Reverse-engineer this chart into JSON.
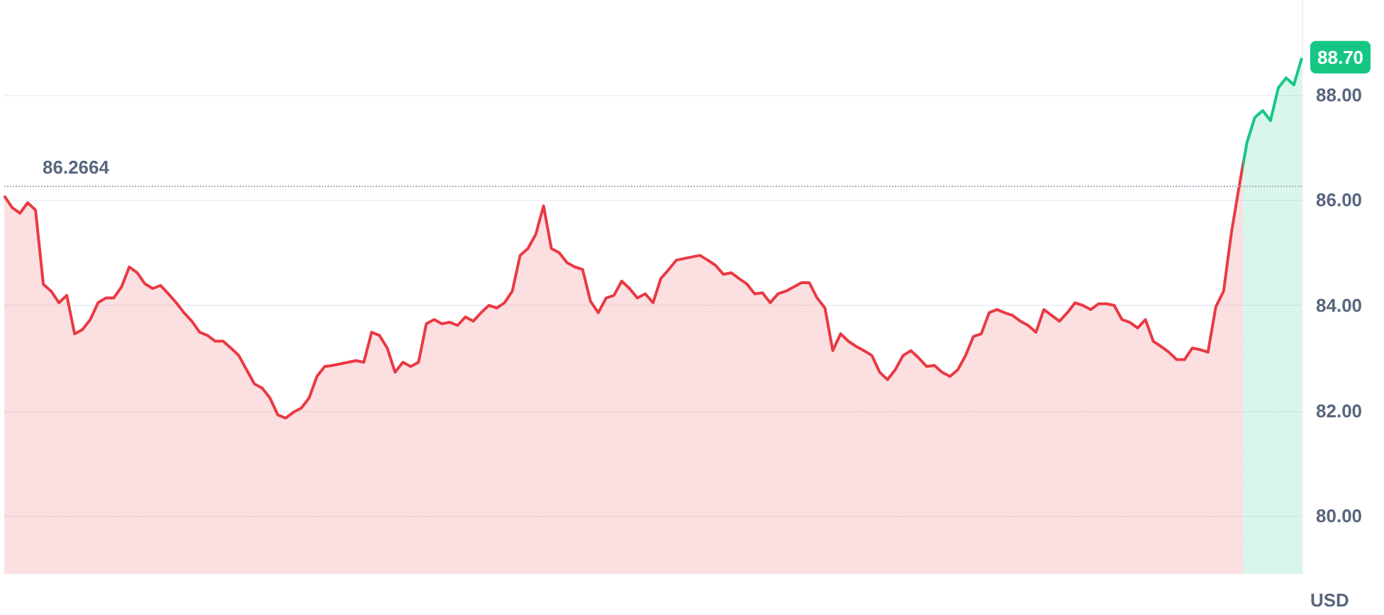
{
  "chart_data": {
    "type": "area",
    "ylabel": "USD",
    "categories": [
      null,
      null,
      null,
      null,
      null,
      null,
      null,
      null,
      null,
      null,
      null,
      null,
      null,
      null,
      null,
      null,
      null,
      null,
      null,
      null,
      null,
      null,
      null,
      null,
      null,
      null,
      null,
      null,
      null,
      null,
      null,
      null,
      null,
      null,
      null,
      null,
      null,
      null,
      null,
      null,
      null,
      null,
      null,
      null,
      null,
      null,
      null,
      null,
      null,
      null,
      null,
      null,
      null,
      null,
      null,
      null,
      null,
      null,
      null,
      null,
      null,
      null,
      null,
      null,
      null,
      null,
      null,
      null,
      null,
      null,
      null,
      null,
      null,
      null,
      null,
      null,
      null,
      null,
      null,
      null,
      null,
      null,
      null,
      null,
      null,
      null,
      null,
      null,
      null,
      null,
      null,
      null,
      null,
      null,
      null,
      null,
      null,
      null,
      null,
      null,
      null,
      null,
      null,
      null,
      null,
      null,
      null,
      null,
      null,
      null,
      null,
      null,
      null,
      null,
      null,
      null,
      null,
      null,
      null,
      null,
      null,
      null,
      null,
      null,
      null,
      null,
      null,
      null,
      null,
      null,
      null,
      null,
      null,
      null,
      null,
      null,
      null,
      null,
      null,
      null,
      null,
      null,
      null,
      null,
      null,
      null,
      null,
      null,
      null,
      null,
      null,
      null,
      null,
      null,
      null,
      null,
      null,
      null,
      null,
      null,
      null,
      null,
      null,
      null,
      null,
      null,
      null
    ],
    "values": [
      86.08,
      85.86,
      85.75,
      85.95,
      85.81,
      84.4,
      84.27,
      84.05,
      84.19,
      83.46,
      83.54,
      83.73,
      84.05,
      84.14,
      84.14,
      84.35,
      84.73,
      84.62,
      84.41,
      84.32,
      84.38,
      84.22,
      84.05,
      83.86,
      83.7,
      83.49,
      83.43,
      83.32,
      83.32,
      83.19,
      83.05,
      82.78,
      82.51,
      82.43,
      82.24,
      81.92,
      81.86,
      81.97,
      82.05,
      82.24,
      82.65,
      82.84,
      82.86,
      82.89,
      82.92,
      82.95,
      82.92,
      83.49,
      83.43,
      83.19,
      82.73,
      82.92,
      82.84,
      82.92,
      83.65,
      83.73,
      83.65,
      83.68,
      83.62,
      83.78,
      83.7,
      83.86,
      84.0,
      83.95,
      84.05,
      84.27,
      84.95,
      85.08,
      85.35,
      85.89,
      85.08,
      85.0,
      84.81,
      84.73,
      84.68,
      84.08,
      83.86,
      84.14,
      84.19,
      84.46,
      84.32,
      84.14,
      84.22,
      84.05,
      84.51,
      84.68,
      84.86,
      84.89,
      84.92,
      84.95,
      84.86,
      84.76,
      84.59,
      84.62,
      84.51,
      84.41,
      84.22,
      84.24,
      84.05,
      84.22,
      84.27,
      84.35,
      84.43,
      84.43,
      84.14,
      83.95,
      83.14,
      83.46,
      83.32,
      83.22,
      83.14,
      83.05,
      82.73,
      82.59,
      82.78,
      83.05,
      83.14,
      83.0,
      82.84,
      82.86,
      82.73,
      82.65,
      82.78,
      83.05,
      83.41,
      83.46,
      83.86,
      83.92,
      83.86,
      83.81,
      83.7,
      83.62,
      83.49,
      83.92,
      83.81,
      83.7,
      83.86,
      84.05,
      84.0,
      83.92,
      84.03,
      84.03,
      84.0,
      83.73,
      83.68,
      83.57,
      83.73,
      83.32,
      83.22,
      83.11,
      82.97,
      82.97,
      83.19,
      83.16,
      83.11,
      83.97,
      84.27,
      85.38,
      86.27,
      87.1,
      87.57,
      87.7,
      87.51,
      88.13,
      88.32,
      88.19,
      88.7
    ],
    "colors": [
      "#ea3943",
      "#ea3943",
      "#ea3943",
      "#ea3943",
      "#ea3943",
      "#ea3943",
      "#ea3943",
      "#ea3943",
      "#ea3943",
      "#ea3943",
      "#ea3943",
      "#ea3943",
      "#ea3943",
      "#ea3943",
      "#ea3943",
      "#ea3943",
      "#ea3943",
      "#ea3943",
      "#ea3943",
      "#ea3943",
      "#ea3943",
      "#ea3943",
      "#ea3943",
      "#ea3943",
      "#ea3943",
      "#ea3943",
      "#ea3943",
      "#ea3943",
      "#ea3943",
      "#ea3943",
      "#ea3943",
      "#ea3943",
      "#ea3943",
      "#ea3943",
      "#ea3943",
      "#ea3943",
      "#ea3943",
      "#ea3943",
      "#ea3943",
      "#ea3943",
      "#ea3943",
      "#ea3943",
      "#ea3943",
      "#ea3943",
      "#ea3943",
      "#ea3943",
      "#ea3943",
      "#ea3943",
      "#ea3943",
      "#ea3943",
      "#ea3943",
      "#ea3943",
      "#ea3943",
      "#ea3943",
      "#ea3943",
      "#ea3943",
      "#ea3943",
      "#ea3943",
      "#ea3943",
      "#ea3943",
      "#ea3943",
      "#ea3943",
      "#ea3943",
      "#ea3943",
      "#ea3943",
      "#ea3943",
      "#ea3943",
      "#ea3943",
      "#ea3943",
      "#ea3943",
      "#ea3943",
      "#ea3943",
      "#ea3943",
      "#ea3943",
      "#ea3943",
      "#ea3943",
      "#ea3943",
      "#ea3943",
      "#ea3943",
      "#ea3943",
      "#ea3943",
      "#ea3943",
      "#ea3943",
      "#ea3943",
      "#ea3943",
      "#ea3943",
      "#ea3943",
      "#ea3943",
      "#ea3943",
      "#ea3943",
      "#ea3943",
      "#ea3943",
      "#ea3943",
      "#ea3943",
      "#ea3943",
      "#ea3943",
      "#ea3943",
      "#ea3943",
      "#ea3943",
      "#ea3943",
      "#ea3943",
      "#ea3943",
      "#ea3943",
      "#ea3943",
      "#ea3943",
      "#ea3943",
      "#ea3943",
      "#ea3943",
      "#ea3943",
      "#ea3943",
      "#ea3943",
      "#ea3943",
      "#ea3943",
      "#ea3943",
      "#ea3943",
      "#ea3943",
      "#ea3943",
      "#ea3943",
      "#ea3943",
      "#ea3943",
      "#ea3943",
      "#ea3943",
      "#ea3943",
      "#ea3943",
      "#ea3943",
      "#ea3943",
      "#ea3943",
      "#ea3943",
      "#ea3943",
      "#ea3943",
      "#ea3943",
      "#ea3943",
      "#ea3943",
      "#ea3943",
      "#ea3943",
      "#ea3943",
      "#ea3943",
      "#ea3943",
      "#ea3943",
      "#ea3943",
      "#ea3943",
      "#ea3943",
      "#ea3943",
      "#ea3943",
      "#ea3943",
      "#ea3943",
      "#ea3943",
      "#ea3943",
      "#ea3943",
      "#ea3943",
      "#ea3943",
      "#ea3943",
      "#ea3943",
      "#ea3943",
      "#ea3943",
      "#ea3943",
      "#ea3943",
      "#ea3943",
      "#ea3943",
      "#16c784",
      "#16c784",
      "#16c784",
      "#16c784",
      "#16c784",
      "#16c784",
      "#16c784",
      "#16c784"
    ],
    "ylim": [
      78.9,
      89.8
    ],
    "yticks": [
      {
        "value": 80,
        "label": "80.00"
      },
      {
        "value": 82,
        "label": "82.00"
      },
      {
        "value": 84,
        "label": "84.00"
      },
      {
        "value": 86,
        "label": "86.00"
      },
      {
        "value": 88,
        "label": "88.00"
      }
    ],
    "grid": "y",
    "marker": "none",
    "ref_lines": [
      {
        "axis": "y",
        "value": 86.2664,
        "label": "86.2664",
        "line_style": "dotted",
        "color": "#a6b0c3"
      }
    ],
    "annotations": [
      "88.70"
    ]
  }
}
